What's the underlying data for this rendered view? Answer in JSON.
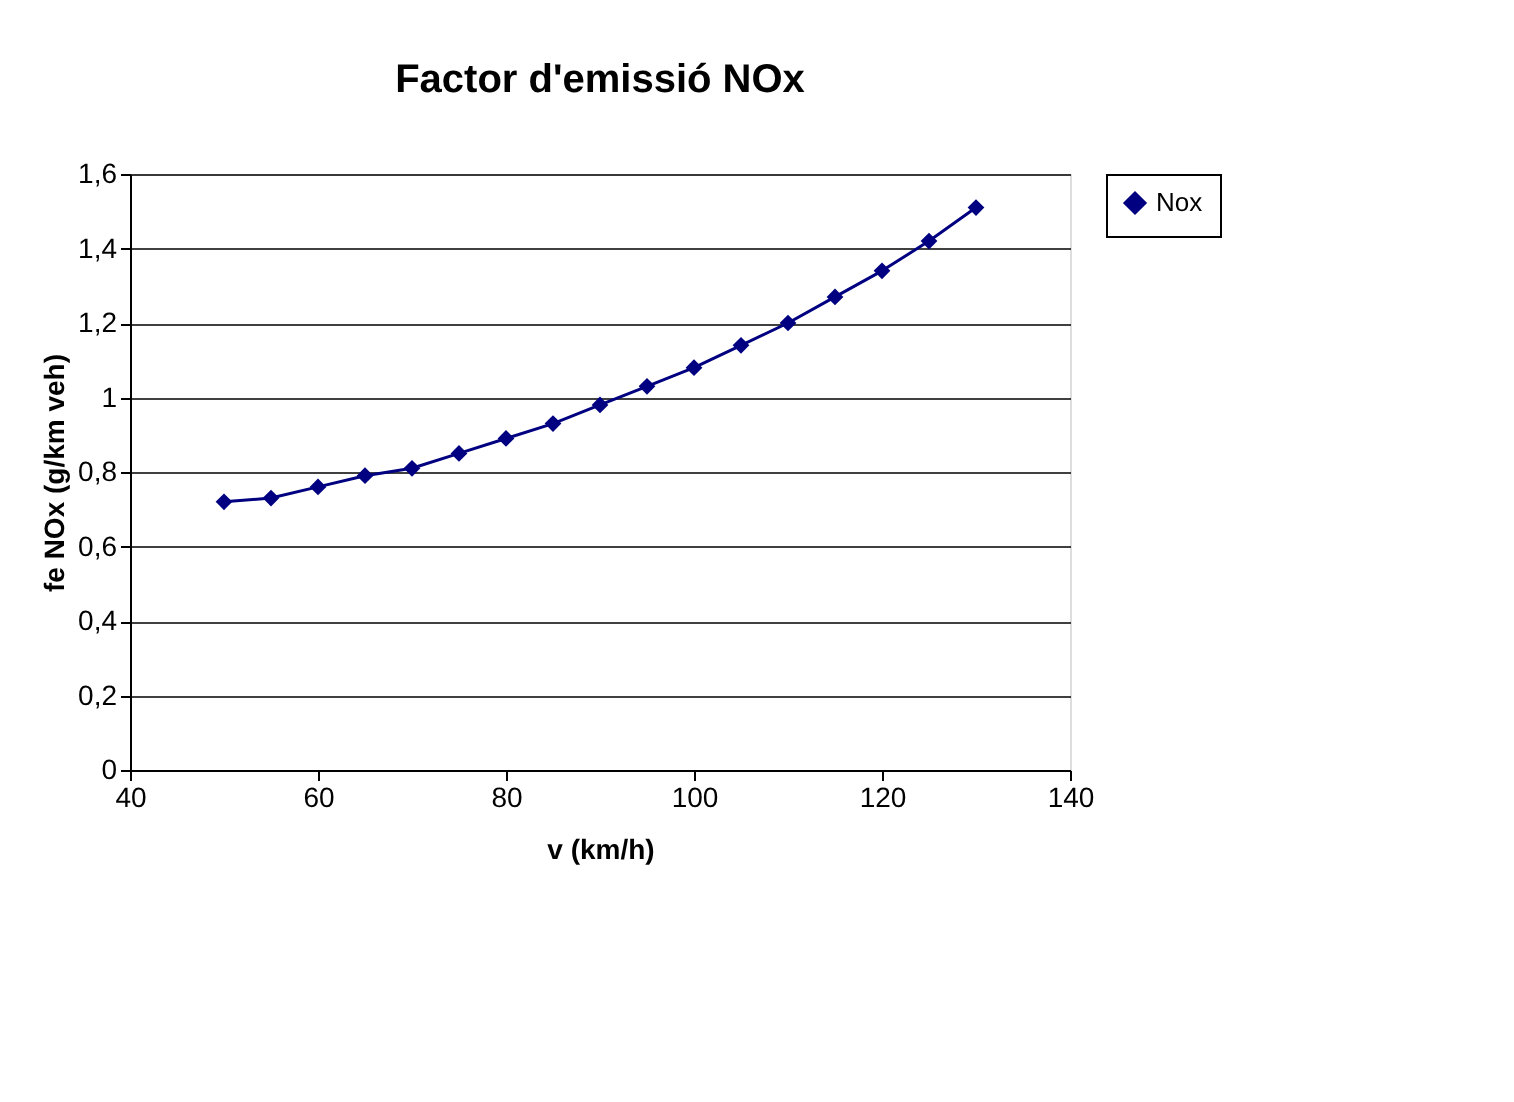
{
  "chart_data": {
    "type": "line",
    "title": "Factor d'emissió NOx",
    "xlabel": "v (km/h)",
    "ylabel": "fe NOx (g/km veh)",
    "x": [
      50,
      55,
      60,
      65,
      70,
      75,
      80,
      85,
      90,
      95,
      100,
      105,
      110,
      115,
      120,
      125,
      130
    ],
    "series": [
      {
        "name": "Nox",
        "color": "#000080",
        "values": [
          0.72,
          0.73,
          0.76,
          0.79,
          0.81,
          0.85,
          0.89,
          0.93,
          0.98,
          1.03,
          1.08,
          1.14,
          1.2,
          1.27,
          1.34,
          1.42,
          1.51
        ]
      }
    ],
    "xlim": [
      40,
      140
    ],
    "xticks": [
      40,
      60,
      80,
      100,
      120,
      140
    ],
    "ylim": [
      0,
      1.6
    ],
    "yticks": [
      0,
      {
        "value": 0.2,
        "label": "0,2"
      },
      {
        "value": 0.4,
        "label": "0,4"
      },
      {
        "value": 0.6,
        "label": "0,6"
      },
      {
        "value": 0.8,
        "label": "0,8"
      },
      1,
      {
        "value": 1.2,
        "label": "1,2"
      },
      {
        "value": 1.4,
        "label": "1,4"
      },
      {
        "value": 1.6,
        "label": "1,6"
      }
    ],
    "grid": "y",
    "legend": "right",
    "marker": "diamond",
    "line_style": "solid"
  }
}
